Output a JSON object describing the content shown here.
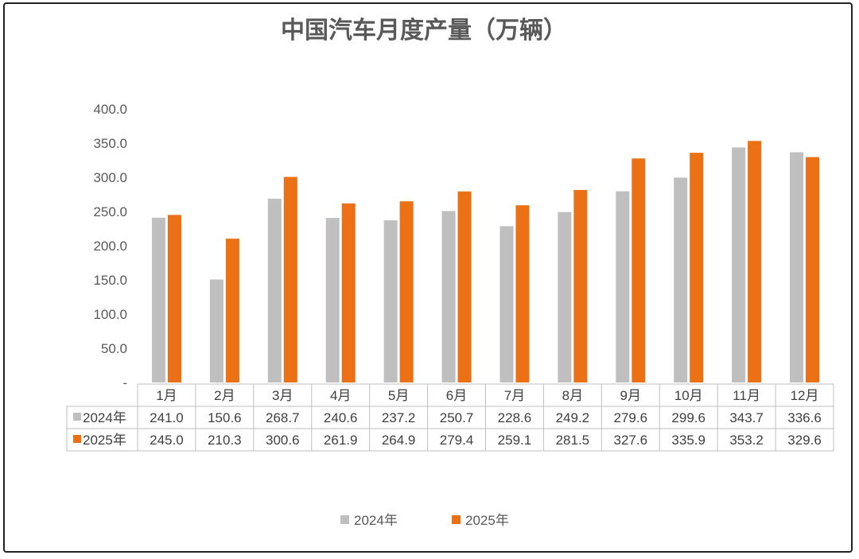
{
  "chart_data": {
    "type": "bar",
    "title": "中国汽车月度产量（万辆）",
    "categories": [
      "1月",
      "2月",
      "3月",
      "4月",
      "5月",
      "6月",
      "7月",
      "8月",
      "9月",
      "10月",
      "11月",
      "12月"
    ],
    "series": [
      {
        "name": "2024年",
        "color": "#bfbfbf",
        "values": [
          241.0,
          150.6,
          268.7,
          240.6,
          237.2,
          250.7,
          228.6,
          249.2,
          279.6,
          299.6,
          343.7,
          336.6
        ],
        "labels": [
          "241.0",
          "150.6",
          "268.7",
          "240.6",
          "237.2",
          "250.7",
          "228.6",
          "249.2",
          "279.6",
          "299.6",
          "343.7",
          "336.6"
        ]
      },
      {
        "name": "2025年",
        "color": "#ec7014",
        "values": [
          245.0,
          210.3,
          300.6,
          261.9,
          264.9,
          279.4,
          259.1,
          281.5,
          327.6,
          335.9,
          353.2,
          329.6
        ],
        "labels": [
          "245.0",
          "210.3",
          "300.6",
          "261.9",
          "264.9",
          "279.4",
          "259.1",
          "281.5",
          "327.6",
          "335.9",
          "353.2",
          "329.6"
        ]
      }
    ],
    "ylim": [
      0,
      400
    ],
    "yticks": [
      0,
      50,
      100,
      150,
      200,
      250,
      300,
      350,
      400
    ],
    "ytick_labels": [
      "-",
      "50.0",
      "100.0",
      "150.0",
      "200.0",
      "250.0",
      "300.0",
      "350.0",
      "400.0"
    ],
    "data_table": true,
    "legend_position": "bottom",
    "grid": false
  }
}
